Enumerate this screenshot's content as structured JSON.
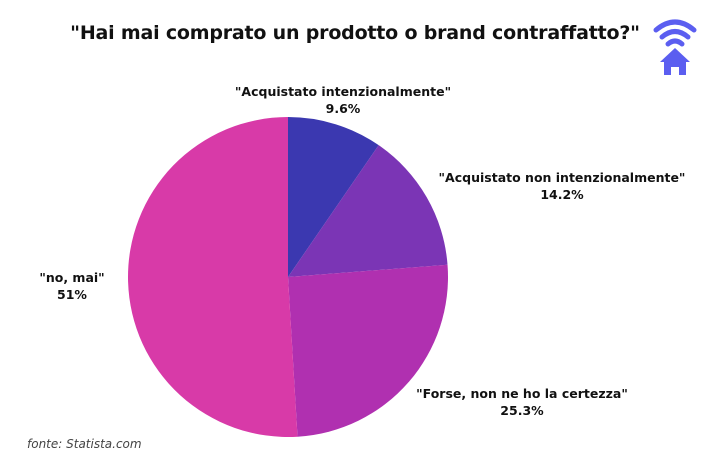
{
  "header": {
    "title": "\"Hai mai comprato un prodotto o brand contraffatto?\"",
    "logo_icon": "wifi-home-icon",
    "logo_color": "#5b5ef0"
  },
  "labels": [
    {
      "name": "\"Acquistato intenzionalmente\"",
      "value": "9.6%"
    },
    {
      "name": "\"Acquistato non intenzionalmente\"",
      "value": "14.2%"
    },
    {
      "name": "\"Forse, non ne ho la certezza\"",
      "value": "25.3%"
    },
    {
      "name": "\"no, mai\"",
      "value": "51%"
    }
  ],
  "footer": {
    "source": "fonte: Statista.com"
  },
  "chart_data": {
    "type": "pie",
    "title": "\"Hai mai comprato un prodotto o brand contraffatto?\"",
    "categories": [
      "\"Acquistato intenzionalmente\"",
      "\"Acquistato non intenzionalmente\"",
      "\"Forse, non ne ho la certezza\"",
      "\"no, mai\""
    ],
    "values": [
      9.6,
      14.2,
      25.3,
      51
    ],
    "colors": [
      "#3b38b0",
      "#7b35b5",
      "#b030b0",
      "#d83aa8"
    ],
    "start_angle_deg": 0,
    "direction": "clockwise",
    "legend": "none (direct labels)",
    "source": "fonte: Statista.com"
  }
}
